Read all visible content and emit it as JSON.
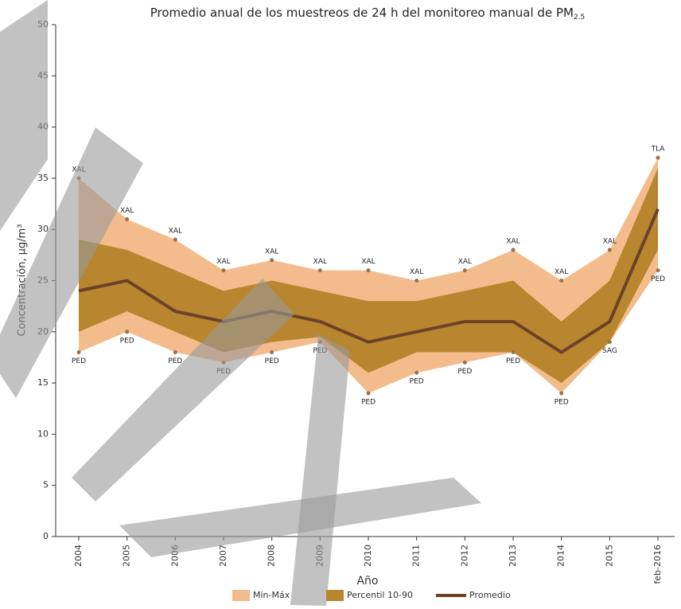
{
  "chart_data": {
    "type": "band-line",
    "title": "Promedio anual de los muestreos de 24 h del monitoreo manual de PM",
    "title_sub": "2.5",
    "y_label": "Concentración, µg/m³",
    "x_label": "Año",
    "categories": [
      "2004",
      "2005",
      "2006",
      "2007",
      "2008",
      "2009",
      "2010",
      "2011",
      "2012",
      "2013",
      "2014",
      "2015",
      "feb-2016"
    ],
    "ylim": [
      0,
      50
    ],
    "yticks": [
      0,
      5,
      10,
      15,
      20,
      25,
      30,
      35,
      40,
      45,
      50
    ],
    "series": [
      {
        "name": "Min-Máx",
        "color": "#f3bc8c",
        "kind": "band",
        "high": [
          35,
          31,
          29,
          26,
          27,
          26,
          26,
          25,
          26,
          28,
          25,
          28,
          37
        ],
        "low": [
          18,
          20,
          18,
          17,
          18,
          19,
          14,
          16,
          17,
          18,
          14,
          19,
          26
        ],
        "high_labels": [
          "XAL",
          "XAL",
          "XAL",
          "XAL",
          "XAL",
          "XAL",
          "XAL",
          "XAL",
          "XAL",
          "XAL",
          "XAL",
          "XAL",
          "TLA"
        ],
        "low_labels": [
          "PED",
          "PED",
          "PED",
          "PED",
          "PED",
          "PED",
          "PED",
          "PED",
          "PED",
          "PED",
          "PED",
          "SAG",
          "PED"
        ]
      },
      {
        "name": "Percentil 10-90",
        "color": "#b8862e",
        "kind": "band",
        "high": [
          29,
          28,
          26,
          24,
          25,
          24,
          23,
          23,
          24,
          25,
          21,
          25,
          36
        ],
        "low": [
          20,
          22,
          20,
          18,
          19,
          19.5,
          16,
          18,
          18,
          18,
          15,
          19,
          28
        ]
      },
      {
        "name": "Promedio",
        "color": "#6b4228",
        "kind": "line",
        "values": [
          24,
          25,
          22,
          21,
          22,
          21,
          19,
          20,
          21,
          21,
          18,
          21,
          32
        ]
      }
    ]
  }
}
